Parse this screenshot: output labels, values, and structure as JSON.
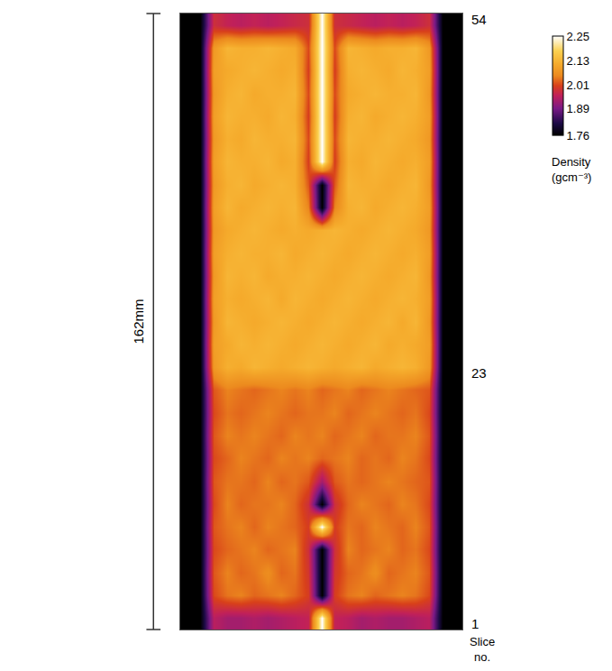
{
  "chart_data": {
    "type": "heatmap",
    "y_label": "Slice no.",
    "scale_bar": {
      "label": "162mm"
    },
    "tick_labels": "y",
    "grid": false,
    "y": [
      1.5,
      3.5,
      5.5,
      7.5,
      9.5,
      11.5,
      13.5,
      15.5,
      17.5,
      19.5,
      21.5,
      23.5,
      25.5,
      27.5,
      29.5,
      31.5,
      33.5,
      35.5,
      37.5,
      39.5,
      41.5,
      43.5,
      45.5,
      47.5,
      49.5,
      51.5,
      53.5
    ],
    "ylim": [
      0.5,
      54.5
    ],
    "yticks": [
      1,
      23,
      54
    ],
    "colorbar": {
      "title": "Density (gcm⁻³)",
      "range": [
        1.76,
        2.25
      ],
      "ticks": [
        1.76,
        1.89,
        2.01,
        2.13,
        2.25
      ]
    },
    "cells": [
      [
        1.76,
        1.76,
        1.95,
        1.93,
        1.93,
        1.94,
        1.93,
        1.94,
        1.95,
        1.96,
        2.25,
        1.96,
        1.95,
        1.93,
        1.94,
        1.93,
        1.93,
        1.94,
        1.95,
        1.76,
        1.76
      ],
      [
        1.76,
        1.76,
        2.01,
        2.04,
        2.05,
        2.03,
        2.04,
        2.05,
        2.03,
        2.0,
        1.76,
        2.0,
        2.04,
        2.05,
        2.03,
        2.04,
        2.05,
        2.04,
        2.01,
        1.76,
        1.76
      ],
      [
        1.76,
        1.76,
        2.02,
        2.05,
        2.03,
        2.04,
        2.06,
        2.03,
        2.04,
        1.99,
        1.76,
        1.99,
        2.03,
        2.04,
        2.06,
        2.03,
        2.04,
        2.05,
        2.02,
        1.76,
        1.76
      ],
      [
        1.76,
        1.76,
        2.01,
        2.03,
        2.04,
        2.05,
        2.03,
        2.04,
        2.05,
        1.98,
        1.76,
        1.98,
        2.05,
        2.03,
        2.04,
        2.05,
        2.03,
        2.04,
        2.01,
        1.76,
        1.76
      ],
      [
        1.76,
        1.76,
        2.02,
        2.04,
        2.05,
        2.03,
        2.05,
        2.04,
        2.03,
        2.0,
        2.25,
        2.0,
        2.04,
        2.03,
        2.05,
        2.04,
        2.03,
        2.05,
        2.02,
        1.76,
        1.76
      ],
      [
        1.76,
        1.76,
        2.01,
        2.05,
        2.03,
        2.04,
        2.04,
        2.05,
        2.03,
        1.98,
        1.76,
        1.98,
        2.03,
        2.05,
        2.04,
        2.03,
        2.05,
        2.04,
        2.01,
        1.76,
        1.76
      ],
      [
        1.76,
        1.76,
        2.02,
        2.04,
        2.04,
        2.03,
        2.05,
        2.03,
        2.04,
        2.02,
        1.93,
        2.02,
        2.04,
        2.03,
        2.04,
        2.05,
        2.04,
        2.03,
        2.02,
        1.76,
        1.76
      ],
      [
        1.76,
        1.76,
        2.01,
        2.03,
        2.05,
        2.04,
        2.03,
        2.05,
        2.04,
        2.05,
        2.03,
        2.04,
        2.05,
        2.03,
        2.04,
        2.03,
        2.05,
        2.04,
        2.01,
        1.76,
        1.76
      ],
      [
        1.76,
        1.76,
        2.02,
        2.05,
        2.04,
        2.05,
        2.04,
        2.03,
        2.05,
        2.04,
        2.05,
        2.03,
        2.04,
        2.05,
        2.03,
        2.04,
        2.04,
        2.05,
        2.02,
        1.76,
        1.76
      ],
      [
        1.76,
        1.76,
        2.01,
        2.04,
        2.03,
        2.04,
        2.05,
        2.04,
        2.03,
        2.04,
        2.04,
        2.05,
        2.03,
        2.04,
        2.05,
        2.04,
        2.03,
        2.04,
        2.01,
        1.76,
        1.76
      ],
      [
        1.76,
        1.76,
        2.02,
        2.05,
        2.04,
        2.03,
        2.04,
        2.05,
        2.04,
        2.05,
        2.03,
        2.04,
        2.05,
        2.03,
        2.04,
        2.05,
        2.04,
        2.03,
        2.02,
        1.76,
        1.76
      ],
      [
        1.76,
        1.76,
        2.08,
        2.12,
        2.11,
        2.13,
        2.12,
        2.11,
        2.12,
        2.13,
        2.12,
        2.11,
        2.12,
        2.13,
        2.11,
        2.12,
        2.13,
        2.12,
        2.08,
        1.76,
        1.76
      ],
      [
        1.76,
        1.76,
        2.09,
        2.11,
        2.13,
        2.12,
        2.13,
        2.12,
        2.11,
        2.12,
        2.13,
        2.12,
        2.11,
        2.12,
        2.13,
        2.11,
        2.12,
        2.11,
        2.09,
        1.76,
        1.76
      ],
      [
        1.76,
        1.76,
        2.08,
        2.13,
        2.12,
        2.11,
        2.12,
        2.13,
        2.12,
        2.11,
        2.12,
        2.13,
        2.12,
        2.11,
        2.12,
        2.13,
        2.11,
        2.13,
        2.08,
        1.76,
        1.76
      ],
      [
        1.76,
        1.76,
        2.09,
        2.12,
        2.11,
        2.12,
        2.13,
        2.11,
        2.13,
        2.12,
        2.11,
        2.12,
        2.13,
        2.12,
        2.11,
        2.12,
        2.13,
        2.12,
        2.09,
        1.76,
        1.76
      ],
      [
        1.76,
        1.76,
        2.08,
        2.13,
        2.12,
        2.13,
        2.11,
        2.12,
        2.12,
        2.13,
        2.12,
        2.11,
        2.12,
        2.13,
        2.12,
        2.11,
        2.12,
        2.13,
        2.08,
        1.76,
        1.76
      ],
      [
        1.76,
        1.76,
        2.09,
        2.12,
        2.13,
        2.12,
        2.12,
        2.13,
        2.11,
        2.12,
        2.13,
        2.12,
        2.11,
        2.12,
        2.13,
        2.12,
        2.11,
        2.12,
        2.09,
        1.76,
        1.76
      ],
      [
        1.76,
        1.76,
        2.08,
        2.11,
        2.12,
        2.13,
        2.12,
        2.11,
        2.12,
        2.11,
        2.12,
        2.13,
        2.12,
        2.11,
        2.12,
        2.13,
        2.12,
        2.11,
        2.08,
        1.76,
        1.76
      ],
      [
        1.76,
        1.76,
        2.09,
        2.13,
        2.11,
        2.12,
        2.13,
        2.12,
        2.13,
        2.05,
        1.76,
        2.05,
        2.12,
        2.13,
        2.11,
        2.12,
        2.13,
        2.12,
        2.09,
        1.76,
        1.76
      ],
      [
        1.76,
        1.76,
        2.08,
        2.12,
        2.13,
        2.11,
        2.12,
        2.13,
        2.12,
        2.02,
        1.76,
        2.02,
        2.13,
        2.12,
        2.12,
        2.11,
        2.12,
        2.13,
        2.08,
        1.76,
        1.76
      ],
      [
        1.76,
        1.76,
        2.09,
        2.13,
        2.12,
        2.12,
        2.13,
        2.11,
        2.12,
        2.0,
        2.25,
        2.0,
        2.12,
        2.11,
        2.13,
        2.12,
        2.11,
        2.12,
        2.09,
        1.76,
        1.76
      ],
      [
        1.76,
        1.76,
        2.08,
        2.12,
        2.11,
        2.13,
        2.12,
        2.12,
        2.13,
        2.01,
        2.25,
        2.01,
        2.13,
        2.12,
        2.12,
        2.13,
        2.12,
        2.11,
        2.08,
        1.76,
        1.76
      ],
      [
        1.76,
        1.76,
        2.09,
        2.13,
        2.12,
        2.12,
        2.11,
        2.13,
        2.12,
        2.0,
        2.25,
        2.0,
        2.12,
        2.13,
        2.11,
        2.12,
        2.13,
        2.12,
        2.09,
        1.76,
        1.76
      ],
      [
        1.76,
        1.76,
        2.08,
        2.12,
        2.13,
        2.11,
        2.12,
        2.12,
        2.13,
        2.01,
        2.25,
        2.01,
        2.11,
        2.12,
        2.13,
        2.12,
        2.12,
        2.13,
        2.08,
        1.76,
        1.76
      ],
      [
        1.76,
        1.76,
        2.09,
        2.11,
        2.12,
        2.13,
        2.12,
        2.11,
        2.12,
        2.0,
        2.25,
        2.0,
        2.12,
        2.13,
        2.12,
        2.11,
        2.13,
        2.12,
        2.09,
        1.76,
        1.76
      ],
      [
        1.76,
        1.76,
        2.08,
        2.13,
        2.12,
        2.12,
        2.13,
        2.12,
        2.11,
        2.01,
        2.25,
        2.01,
        2.13,
        2.12,
        2.11,
        2.12,
        2.12,
        2.13,
        2.08,
        1.76,
        1.76
      ],
      [
        1.76,
        1.76,
        1.98,
        1.96,
        1.95,
        1.96,
        1.95,
        1.96,
        1.97,
        1.98,
        2.25,
        1.98,
        1.97,
        1.96,
        1.95,
        1.96,
        1.95,
        1.96,
        1.98,
        1.76,
        1.76
      ]
    ]
  }
}
